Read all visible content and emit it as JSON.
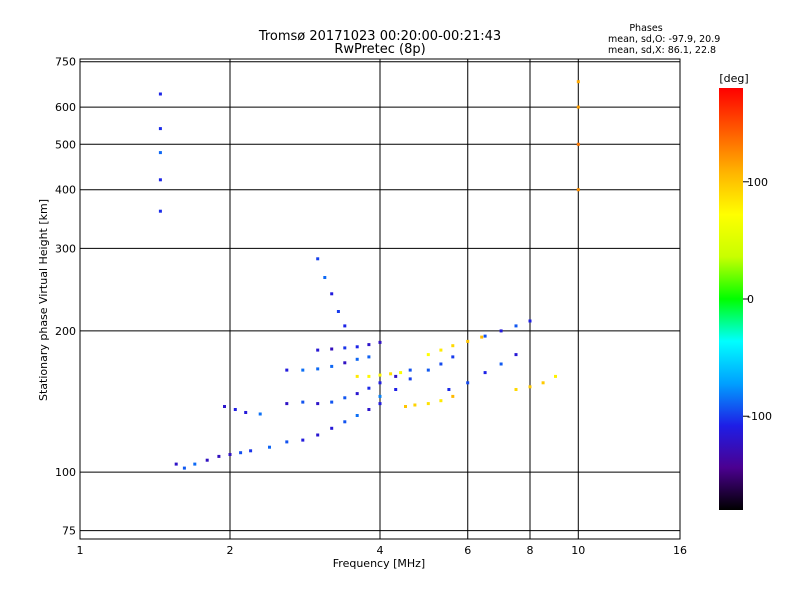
{
  "title": "Tromsø 20171023 00:20:00-00:21:43",
  "subtitle": "RwPretec (8p)",
  "phases": {
    "heading": "Phases",
    "line1": "mean, sd,O: -97.9, 20.9",
    "line2": "mean, sd,X:  86.1, 22.8"
  },
  "chart_data": {
    "type": "scatter",
    "title": "Tromsø 20171023 00:20:00-00:21:43",
    "subtitle": "RwPretec (8p)",
    "xlabel": "Frequency [MHz]",
    "ylabel": "Stationary phase Virtual Height [km]",
    "x_scale": "log",
    "y_scale": "log",
    "xlim": [
      1,
      16
    ],
    "ylim": [
      72,
      760
    ],
    "x_ticks": [
      1,
      2,
      4,
      6,
      8,
      10,
      16
    ],
    "x_tick_labels": [
      "1",
      "2",
      "4",
      "6",
      "8",
      "10",
      "16"
    ],
    "y_ticks": [
      75,
      100,
      200,
      300,
      400,
      500,
      600,
      750
    ],
    "y_tick_labels": [
      "75",
      "100",
      "200",
      "300",
      "400",
      "500",
      "600",
      "750"
    ],
    "grid": true,
    "colorbar": {
      "label": "[deg]",
      "range": [
        -180,
        180
      ],
      "ticks": [
        100,
        0,
        -100
      ],
      "tick_labels": [
        "100",
        "0",
        "-100"
      ],
      "stops": [
        "#000000",
        "#4b0090",
        "#1e1ee6",
        "#00a0ff",
        "#00ffff",
        "#00ff00",
        "#c8ff00",
        "#ffff00",
        "#ffb400",
        "#ff5a00",
        "#ff0000"
      ]
    },
    "series": [
      {
        "mode": "O",
        "phase_mean": -97.9,
        "phase_sd": 20.9,
        "traces": [
          {
            "x": [
              1.56,
              1.62,
              1.7,
              1.8,
              1.9,
              2.0,
              2.1,
              2.2,
              2.4,
              2.6,
              2.8,
              3.0,
              3.2,
              3.4,
              3.6,
              3.8,
              4.0
            ],
            "y": [
              104,
              102,
              104,
              106,
              108,
              109,
              110,
              111,
              113,
              116,
              117,
              120,
              124,
              128,
              132,
              136,
              140
            ],
            "phase_center": -105
          },
          {
            "x": [
              1.95,
              2.05,
              2.15,
              2.3
            ],
            "y": [
              138,
              136,
              134,
              133
            ],
            "phase_center": -100
          },
          {
            "x": [
              2.6,
              2.8,
              3.0,
              3.2,
              3.4,
              3.6,
              3.8,
              4.0,
              4.3,
              4.6
            ],
            "y": [
              140,
              141,
              140,
              141,
              144,
              147,
              151,
              155,
              160,
              165
            ],
            "phase_center": -110
          },
          {
            "x": [
              2.6,
              2.8,
              3.0,
              3.2,
              3.4,
              3.6,
              3.8
            ],
            "y": [
              165,
              165,
              166,
              168,
              171,
              174,
              176
            ],
            "phase_center": -105
          },
          {
            "x": [
              3.0,
              3.2,
              3.4,
              3.6,
              3.8,
              4.0
            ],
            "y": [
              182,
              183,
              184,
              185,
              187,
              189
            ],
            "phase_center": -110
          },
          {
            "x": [
              4.0,
              4.3,
              4.6,
              5.0,
              5.3,
              5.6
            ],
            "y": [
              145,
              150,
              158,
              165,
              170,
              176
            ],
            "phase_center": -100
          },
          {
            "x": [
              5.5,
              6.0,
              6.5,
              7.0,
              7.5
            ],
            "y": [
              150,
              155,
              163,
              170,
              178
            ],
            "phase_center": -100
          },
          {
            "x": [
              6.5,
              7.0,
              7.5,
              8.0
            ],
            "y": [
              195,
              200,
              205,
              210
            ],
            "phase_center": -95
          },
          {
            "x": [
              3.0,
              3.1,
              3.2,
              3.3,
              3.4
            ],
            "y": [
              285,
              260,
              240,
              220,
              205
            ],
            "phase_center": -105
          },
          {
            "x": [
              1.45,
              1.45,
              1.45,
              1.45,
              1.45
            ],
            "y": [
              640,
              540,
              480,
              420,
              360
            ],
            "phase_center": -90
          }
        ]
      },
      {
        "mode": "X",
        "phase_mean": 86.1,
        "phase_sd": 22.8,
        "traces": [
          {
            "x": [
              3.6,
              3.8,
              4.0,
              4.2,
              4.4
            ],
            "y": [
              160,
              160,
              161,
              162,
              163
            ],
            "phase_center": 85
          },
          {
            "x": [
              4.5,
              4.7,
              5.0,
              5.3,
              5.6
            ],
            "y": [
              138,
              139,
              140,
              142,
              145
            ],
            "phase_center": 90
          },
          {
            "x": [
              5.0,
              5.3,
              5.6,
              6.0,
              6.4
            ],
            "y": [
              178,
              182,
              186,
              190,
              194
            ],
            "phase_center": 85
          },
          {
            "x": [
              7.5,
              8.0,
              8.5,
              9.0
            ],
            "y": [
              150,
              152,
              155,
              160
            ],
            "phase_center": 90
          },
          {
            "x": [
              10.0,
              10.0,
              10.0,
              10.0
            ],
            "y": [
              680,
              600,
              500,
              400
            ],
            "phase_center": 120
          }
        ]
      }
    ]
  }
}
